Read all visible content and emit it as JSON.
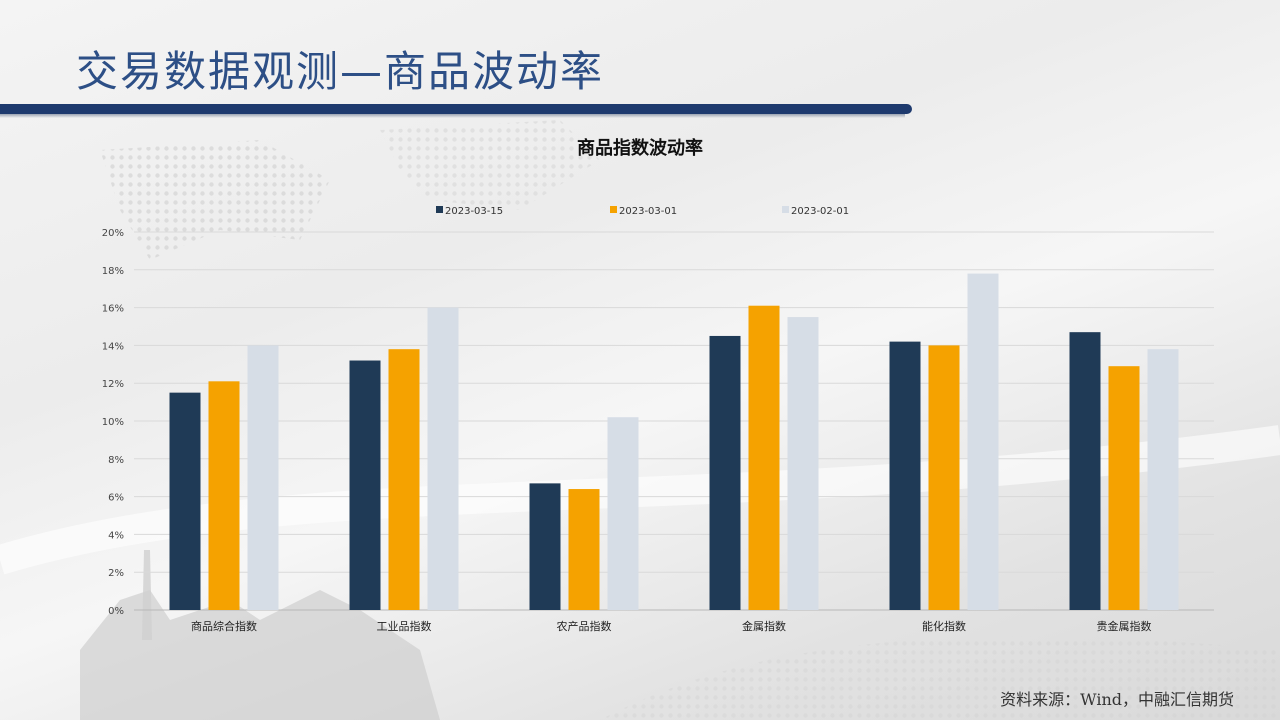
{
  "slide": {
    "title": "交易数据观测—商品波动率",
    "source": "资料来源：Wind，中融汇信期货"
  },
  "colors": {
    "title": "#2d4f86",
    "bar_band": "#1e3a6e",
    "series": [
      "#1f3a56",
      "#f5a200",
      "#d6dde6"
    ]
  },
  "chart_data": {
    "type": "bar",
    "title": "商品指数波动率",
    "legend_position": "top",
    "grid": true,
    "categories": [
      "商品综合指数",
      "工业品指数",
      "农产品指数",
      "金属指数",
      "能化指数",
      "贵金属指数"
    ],
    "series": [
      {
        "name": "2023-03-15",
        "values": [
          11.5,
          13.2,
          6.7,
          14.5,
          14.2,
          14.7
        ]
      },
      {
        "name": "2023-03-01",
        "values": [
          12.1,
          13.8,
          6.4,
          16.1,
          14.0,
          12.9
        ]
      },
      {
        "name": "2023-02-01",
        "values": [
          14.0,
          16.0,
          10.2,
          15.5,
          17.8,
          13.8
        ]
      }
    ],
    "ylim": [
      0,
      20
    ],
    "yticks": [
      0,
      2,
      4,
      6,
      8,
      10,
      12,
      14,
      16,
      18,
      20
    ],
    "ytick_labels": [
      "0%",
      "2%",
      "4%",
      "6%",
      "8%",
      "10%",
      "12%",
      "14%",
      "16%",
      "18%",
      "20%"
    ],
    "xlabel": "",
    "ylabel": ""
  }
}
